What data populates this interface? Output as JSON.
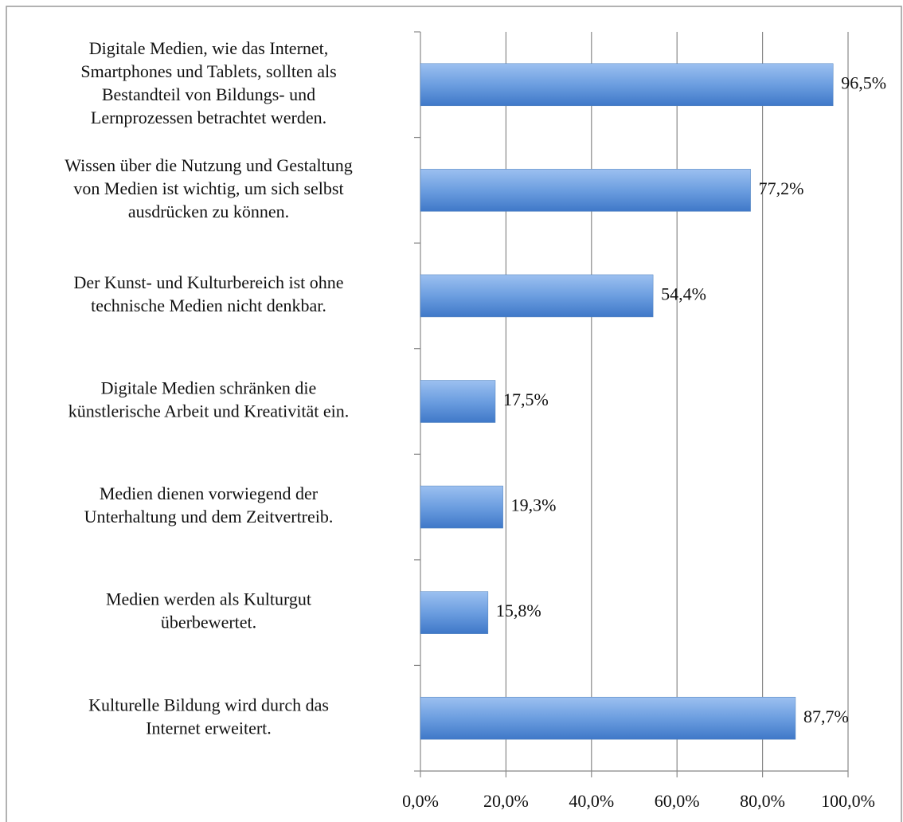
{
  "chart_data": {
    "type": "barh",
    "categories": [
      [
        "Digitale Medien, wie das Internet,",
        "Smartphones und Tablets, sollten als",
        "Bestandteil von Bildungs- und",
        "Lernprozessen betrachtet werden."
      ],
      [
        "Wissen über die Nutzung und Gestaltung",
        "von Medien ist wichtig, um sich selbst",
        "ausdrücken zu können."
      ],
      [
        "Der Kunst- und Kulturbereich ist ohne",
        "technische Medien nicht denkbar."
      ],
      [
        "Digitale Medien schränken die",
        "künstlerische Arbeit und Kreativität ein."
      ],
      [
        "Medien dienen vorwiegend der",
        "Unterhaltung und dem Zeitvertreib."
      ],
      [
        "Medien werden als Kulturgut",
        "überbewertet."
      ],
      [
        "Kulturelle Bildung wird durch das",
        "Internet erweitert."
      ]
    ],
    "values": [
      96.5,
      77.2,
      54.4,
      17.5,
      19.3,
      15.8,
      87.7
    ],
    "value_labels": [
      "96,5%",
      "77,2%",
      "54,4%",
      "17,5%",
      "19,3%",
      "15,8%",
      "87,7%"
    ],
    "color": "#4f81bd",
    "xlim": [
      0,
      100
    ],
    "xticks": [
      {
        "value": 0,
        "label": "0,0%"
      },
      {
        "value": 20,
        "label": "20,0%"
      },
      {
        "value": 40,
        "label": "40,0%"
      },
      {
        "value": 60,
        "label": "60,0%"
      },
      {
        "value": 80,
        "label": "80,0%"
      },
      {
        "value": 100,
        "label": "100,0%"
      }
    ],
    "grid": true
  }
}
